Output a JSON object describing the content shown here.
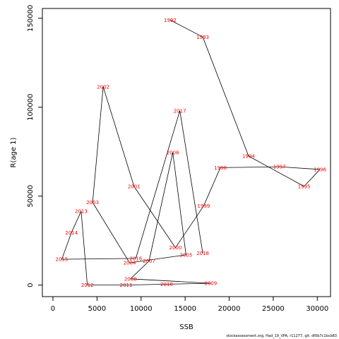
{
  "chart_data": {
    "type": "line",
    "xlabel": "SSB",
    "ylabel": "R(age 1)",
    "xlim": [
      -1200,
      31500
    ],
    "ylim": [
      -6500,
      155500
    ],
    "x_ticks": [
      0,
      5000,
      10000,
      15000,
      20000,
      25000,
      30000
    ],
    "x_tick_labels": [
      "0",
      "5000",
      "10000",
      "15000",
      "20000",
      "25000",
      "30000"
    ],
    "y_ticks": [
      0,
      50000,
      100000,
      150000
    ],
    "y_tick_labels": [
      "0",
      "50000",
      "100000",
      "150000"
    ],
    "grid": false,
    "line_color": "#000000",
    "label_color": "#ff0000",
    "points": [
      {
        "label": "1992",
        "x": 13300,
        "y": 149000
      },
      {
        "label": "1993",
        "x": 17000,
        "y": 139500
      },
      {
        "label": "1994",
        "x": 22200,
        "y": 72500
      },
      {
        "label": "1995",
        "x": 28500,
        "y": 55500
      },
      {
        "label": "1996",
        "x": 30300,
        "y": 65000
      },
      {
        "label": "1997",
        "x": 25700,
        "y": 66500
      },
      {
        "label": "1998",
        "x": 19000,
        "y": 66000
      },
      {
        "label": "1999",
        "x": 17100,
        "y": 44500
      },
      {
        "label": "2000",
        "x": 13900,
        "y": 21000
      },
      {
        "label": "2001",
        "x": 9200,
        "y": 55500
      },
      {
        "label": "2002",
        "x": 5700,
        "y": 111500
      },
      {
        "label": "2003",
        "x": 4500,
        "y": 46500
      },
      {
        "label": "2004",
        "x": 8700,
        "y": 12500
      },
      {
        "label": "2005",
        "x": 15100,
        "y": 17000
      },
      {
        "label": "2006",
        "x": 13600,
        "y": 74500
      },
      {
        "label": "2007",
        "x": 10900,
        "y": 13500
      },
      {
        "label": "2008",
        "x": 8800,
        "y": 3500
      },
      {
        "label": "2009",
        "x": 17900,
        "y": 1000
      },
      {
        "label": "2010",
        "x": 12900,
        "y": 500
      },
      {
        "label": "2011",
        "x": 8300,
        "y": 0
      },
      {
        "label": "2012",
        "x": 3900,
        "y": 0
      },
      {
        "label": "2013",
        "x": 3200,
        "y": 41500
      },
      {
        "label": "2014",
        "x": 2100,
        "y": 29500
      },
      {
        "label": "2015",
        "x": 1000,
        "y": 14500
      },
      {
        "label": "2016",
        "x": 9400,
        "y": 15000
      },
      {
        "label": "2017",
        "x": 14400,
        "y": 98000
      },
      {
        "label": "2018",
        "x": 17000,
        "y": 18000
      }
    ]
  },
  "footnote": "stockassessment.org, Had_19_VPA, r11277, git: df0b7c1bcb83"
}
